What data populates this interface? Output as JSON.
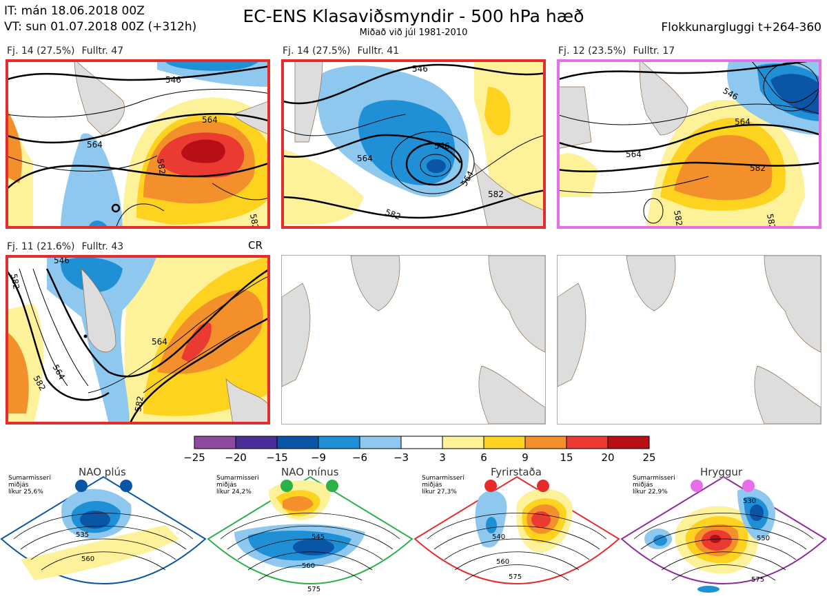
{
  "header": {
    "it": "IT: mán 18.06.2018 00Z",
    "vt": "VT: sun 01.07.2018 00Z  (+312h)",
    "title": "EC-ENS Klasaviðsmyndir - 500 hPa hæð",
    "subtitle": "Miðað við júl 1981-2010",
    "window": "Flokkunargluggi t+264-360"
  },
  "panels": [
    {
      "label": "Fj. 14 (27.5%)",
      "members": "Fulltr. 47",
      "border": "#e52b2b",
      "contours": [
        "546",
        "564",
        "582",
        "564",
        "582"
      ]
    },
    {
      "label": "Fj. 14 (27.5%)",
      "members": "Fulltr. 41",
      "border": "#e52b2b",
      "contours": [
        "546",
        "564",
        "546",
        "564",
        "582",
        "582"
      ]
    },
    {
      "label": "Fj. 12 (23.5%)",
      "members": "Fulltr. 17",
      "border": "#e66ee6",
      "contours": [
        "546",
        "564",
        "564",
        "582",
        "582",
        "582"
      ]
    },
    {
      "label": "Fj. 11 (21.6%)",
      "members": "Fulltr. 43",
      "border": "#e52b2b",
      "contours": [
        "582",
        "564",
        "564",
        "582",
        "582",
        "546"
      ],
      "tag": "CR"
    }
  ],
  "colorbar": {
    "ticks": [
      "−25",
      "−20",
      "−15",
      "−9",
      "−6",
      "−3",
      "3",
      "6",
      "9",
      "15",
      "20",
      "25"
    ],
    "colors": [
      "#8e4a9e",
      "#4a2f99",
      "#0a55a6",
      "#1f8fd6",
      "#8ec8ee",
      "#ffffff",
      "#fdf199",
      "#fdd31f",
      "#f4902c",
      "#ea3a32",
      "#b80e16"
    ]
  },
  "regimes": [
    {
      "name": "NAO plús",
      "season": "Sumarmisseri",
      "median": "miðjás",
      "prob": "líkur 25,6%",
      "color": "#0a55a6",
      "contours": [
        "535",
        "560"
      ]
    },
    {
      "name": "NAO mínus",
      "season": "Sumarmisseri",
      "median": "miðjás",
      "prob": "líkur 24,2%",
      "color": "#2bb04a",
      "contours": [
        "545",
        "560",
        "575"
      ]
    },
    {
      "name": "Fyrirstaða",
      "season": "Sumarmisseri",
      "median": "miðjás",
      "prob": "líkur 27,3%",
      "color": "#e52b2b",
      "contours": [
        "540",
        "560",
        "575"
      ]
    },
    {
      "name": "Hryggur",
      "season": "Sumarmisseri",
      "median": "miðjás",
      "prob": "líkur 22,9%",
      "color": "#e66ee6",
      "contours": [
        "530",
        "550",
        "575"
      ]
    }
  ]
}
